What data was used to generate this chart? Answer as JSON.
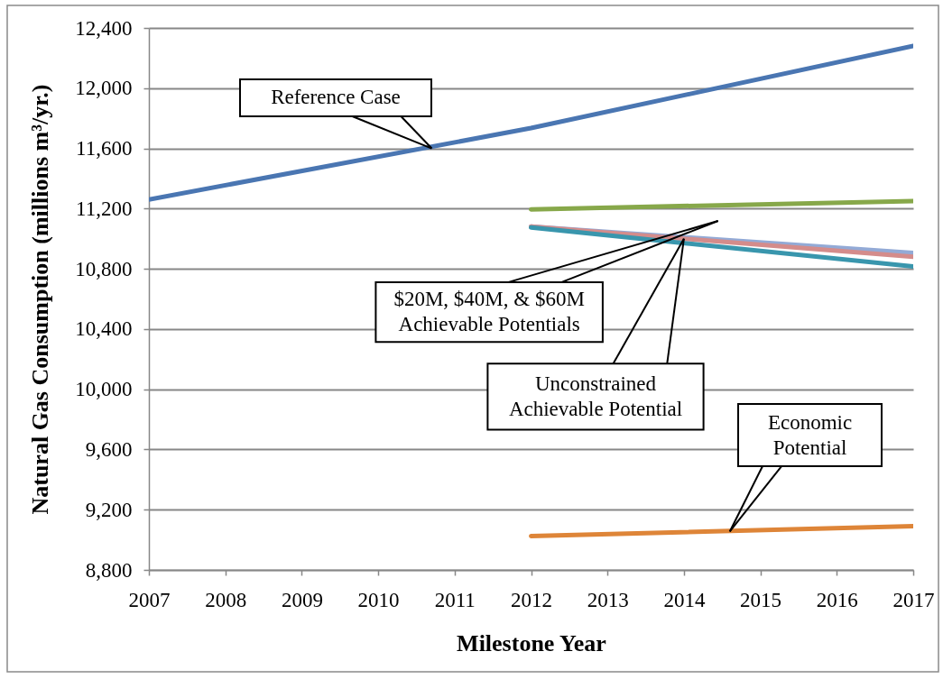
{
  "chart_data": {
    "type": "line",
    "xlabel": "Milestone Year",
    "ylabel": "Natural Gas Consumption (millions m³/yr.)",
    "xlim": [
      2007,
      2017
    ],
    "ylim": [
      8800,
      12400
    ],
    "xticks": [
      2007,
      2008,
      2009,
      2010,
      2011,
      2012,
      2013,
      2014,
      2015,
      2016,
      2017
    ],
    "yticks": [
      {
        "value": 8800,
        "label": "8,800"
      },
      {
        "value": 9200,
        "label": "9,200"
      },
      {
        "value": 9600,
        "label": "9,600"
      },
      {
        "value": 10000,
        "label": "10,000"
      },
      {
        "value": 10400,
        "label": "10,400"
      },
      {
        "value": 10800,
        "label": "10,800"
      },
      {
        "value": 11200,
        "label": "11,200"
      },
      {
        "value": 11600,
        "label": "11,600"
      },
      {
        "value": 12000,
        "label": "12,000"
      },
      {
        "value": 12400,
        "label": "12,400"
      }
    ],
    "grid": "y",
    "line_style": "solid",
    "series": [
      {
        "color": "#4a76b2",
        "x": [
          2007,
          2012,
          2017
        ],
        "values": [
          11260,
          11735,
          12280
        ]
      },
      {
        "color": "#de8538",
        "x": [
          2012,
          2017
        ],
        "values": [
          9025,
          9090
        ]
      },
      {
        "color": "#87a84a",
        "x": [
          2012,
          2017
        ],
        "values": [
          11195,
          11250
        ]
      },
      {
        "color": "#93aad6",
        "x": [
          2012,
          2017
        ],
        "values": [
          11080,
          10905
        ]
      },
      {
        "color": "#d48c8b",
        "x": [
          2012,
          2017
        ],
        "values": [
          11080,
          10880
        ]
      },
      {
        "color": "#3996ad",
        "x": [
          2012,
          2017
        ],
        "values": [
          11075,
          10815
        ]
      }
    ],
    "annotations": [
      {
        "text": "Reference Case",
        "x": 2010.7,
        "y": 11600
      },
      "$20M, $40M, & $60M\nAchievable Potentials",
      {
        "text": "Unconstrained\nAchievable Potential",
        "x": 2014,
        "y": 11000
      },
      {
        "text": "Economic\nPotential",
        "x": 2014.6,
        "y": 9055
      }
    ]
  }
}
